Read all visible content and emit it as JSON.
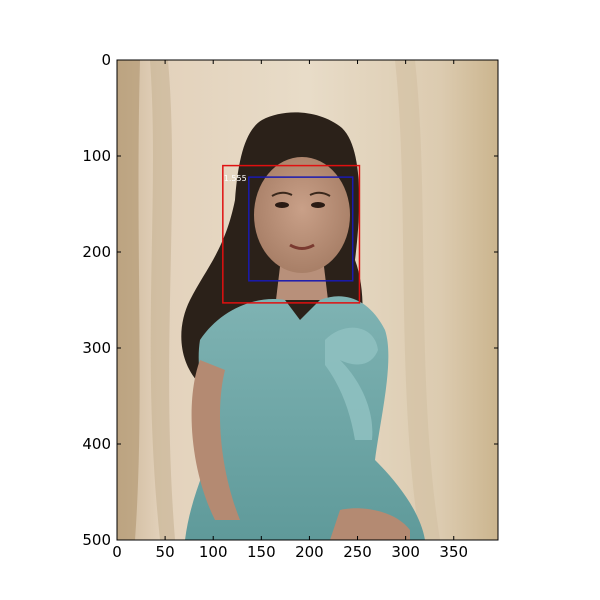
{
  "chart_data": {
    "type": "image-with-boxes",
    "xlim": [
      0,
      396
    ],
    "ylim": [
      500,
      0
    ],
    "x_ticks": [
      "0",
      "50",
      "100",
      "150",
      "200",
      "250",
      "300",
      "350"
    ],
    "y_ticks": [
      "0",
      "100",
      "200",
      "300",
      "400",
      "500"
    ],
    "boxes": [
      {
        "color": "#e01010",
        "x0": 110,
        "y0": 110,
        "x1": 252,
        "y1": 253
      },
      {
        "color": "#1a1ab0",
        "x0": 137,
        "y0": 122,
        "x1": 245,
        "y1": 230
      }
    ],
    "annotation": {
      "text": "1.555",
      "x": 111,
      "y": 126
    }
  }
}
